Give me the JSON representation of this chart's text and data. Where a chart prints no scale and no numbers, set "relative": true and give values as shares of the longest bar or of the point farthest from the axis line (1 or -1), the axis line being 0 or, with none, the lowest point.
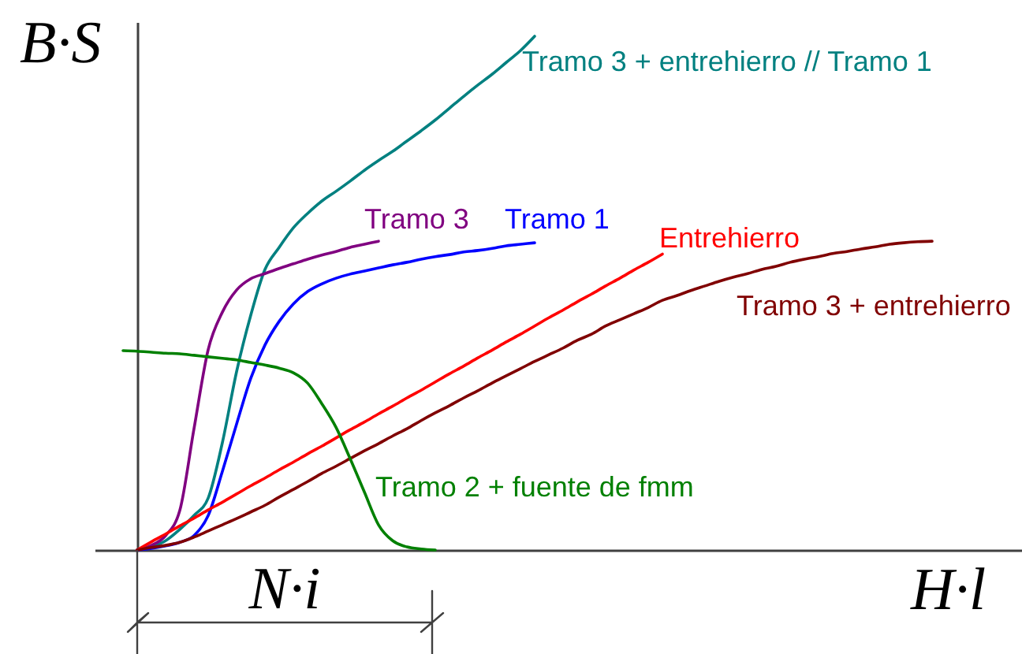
{
  "chart_data": {
    "type": "line",
    "relative": true,
    "xlabel": "H·l",
    "ylabel": "B·S",
    "annotations": [
      "N·i"
    ],
    "categories": [
      null,
      null,
      null,
      null,
      null,
      null,
      null,
      null,
      null,
      null,
      null,
      null,
      null,
      null,
      null,
      null,
      null,
      null,
      null,
      null,
      null,
      null,
      null,
      null,
      null,
      null,
      null,
      null,
      null,
      null,
      null,
      null,
      null,
      null,
      null,
      null,
      null,
      null,
      null,
      null,
      null,
      null,
      null,
      null,
      null,
      null,
      null,
      null,
      null,
      null,
      null,
      null,
      null,
      null,
      null,
      null,
      null,
      null
    ],
    "series": [
      {
        "name": "Tramo 3 + entrehierro // Tramo 1",
        "color": "#008080",
        "values": [
          null,
          0,
          0.006,
          0.018,
          0.04,
          0.067,
          0.101,
          0.209,
          0.347,
          0.457,
          0.546,
          0.589,
          0.627,
          0.655,
          0.679,
          0.698,
          0.718,
          0.739,
          0.758,
          0.776,
          0.796,
          0.816,
          0.837,
          0.86,
          0.883,
          0.905,
          0.926,
          0.949,
          0.972,
          1,
          null,
          null,
          null,
          null,
          null,
          null,
          null,
          null,
          null,
          null,
          null,
          null,
          null,
          null,
          null,
          null,
          null,
          null,
          null,
          null,
          null,
          null,
          null,
          null,
          null,
          null,
          null,
          null
        ]
      },
      {
        "name": "Tramo 3",
        "color": "#800080",
        "values": [
          null,
          0,
          0.009,
          0.028,
          0.077,
          0.236,
          0.39,
          0.463,
          0.506,
          0.528,
          0.538,
          0.548,
          0.557,
          0.566,
          0.574,
          0.581,
          0.589,
          0.595,
          0.601,
          null,
          null,
          null,
          null,
          null,
          null,
          null,
          null,
          null,
          null,
          null,
          null,
          null,
          null,
          null,
          null,
          null,
          null,
          null,
          null,
          null,
          null,
          null,
          null,
          null,
          null,
          null,
          null,
          null,
          null,
          null,
          null,
          null,
          null,
          null,
          null,
          null,
          null,
          null
        ]
      },
      {
        "name": "Tramo 1",
        "color": "#0000ff",
        "values": [
          null,
          0,
          0.003,
          0.008,
          0.015,
          0.028,
          0.067,
          0.153,
          0.245,
          0.334,
          0.399,
          0.445,
          0.479,
          0.503,
          0.518,
          0.529,
          0.537,
          0.543,
          0.549,
          0.555,
          0.56,
          0.566,
          0.571,
          0.575,
          0.58,
          0.583,
          0.587,
          0.592,
          0.595,
          0.598,
          null,
          null,
          null,
          null,
          null,
          null,
          null,
          null,
          null,
          null,
          null,
          null,
          null,
          null,
          null,
          null,
          null,
          null,
          null,
          null,
          null,
          null,
          null,
          null,
          null,
          null,
          null,
          null
        ]
      },
      {
        "name": "Entrehierro",
        "color": "#ff0000",
        "values": [
          null,
          0,
          0.016,
          0.031,
          0.047,
          0.062,
          0.078,
          0.093,
          0.109,
          0.125,
          0.14,
          0.156,
          0.171,
          0.187,
          0.202,
          0.218,
          0.234,
          0.249,
          0.265,
          0.28,
          0.296,
          0.311,
          0.327,
          0.343,
          0.358,
          0.374,
          0.389,
          0.405,
          0.42,
          0.436,
          0.452,
          0.467,
          0.483,
          0.498,
          0.514,
          0.529,
          0.545,
          0.56,
          0.576,
          null,
          null,
          null,
          null,
          null,
          null,
          null,
          null,
          null,
          null,
          null,
          null,
          null,
          null,
          null,
          null,
          null,
          null,
          null
        ]
      },
      {
        "name": "Tramo 3 + entrehierro",
        "color": "#800000",
        "values": [
          null,
          0,
          0.005,
          0.009,
          0.015,
          0.025,
          0.037,
          0.049,
          0.061,
          0.074,
          0.087,
          0.103,
          0.118,
          0.133,
          0.149,
          0.163,
          0.178,
          0.193,
          0.207,
          0.222,
          0.236,
          0.252,
          0.267,
          0.281,
          0.296,
          0.31,
          0.325,
          0.339,
          0.353,
          0.367,
          0.38,
          0.393,
          0.408,
          0.42,
          0.436,
          0.448,
          0.46,
          0.472,
          0.486,
          0.495,
          0.505,
          0.514,
          0.523,
          0.531,
          0.538,
          0.546,
          0.552,
          0.56,
          0.566,
          0.571,
          0.577,
          0.581,
          0.586,
          0.59,
          0.595,
          0.598,
          0.6,
          0.601
        ]
      },
      {
        "name": "Tramo 2 + fuente de fmm",
        "color": "#008000",
        "values": [
          0.388,
          0.387,
          0.385,
          0.383,
          0.382,
          0.379,
          0.376,
          0.373,
          0.37,
          0.365,
          0.36,
          0.354,
          0.345,
          0.325,
          0.285,
          0.239,
          0.178,
          0.113,
          0.049,
          0.018,
          0.006,
          0.002,
          0,
          null,
          null,
          null,
          null,
          null,
          null,
          null,
          null,
          null,
          null,
          null,
          null,
          null,
          null,
          null,
          null,
          null,
          null,
          null,
          null,
          null,
          null,
          null,
          null,
          null,
          null,
          null,
          null,
          null,
          null,
          null,
          null,
          null,
          null,
          null
        ]
      }
    ],
    "grid": false,
    "legend": false
  }
}
